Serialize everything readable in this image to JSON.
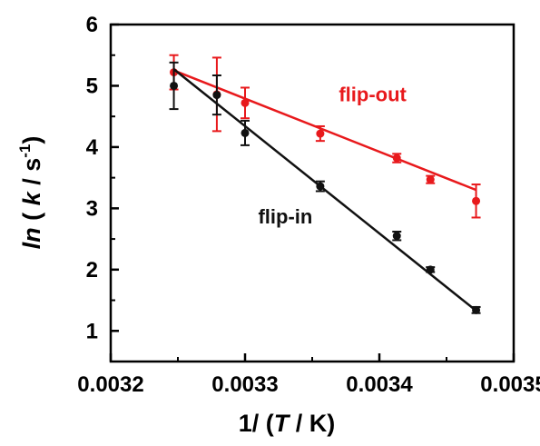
{
  "chart_data": {
    "type": "scatter",
    "title": "",
    "xlabel": {
      "prefix": "1/ (",
      "italic": "T",
      "suffix": " / K)"
    },
    "ylabel": {
      "prefix": "ln",
      "inner_open": " ( ",
      "italic_k": "k",
      "unit": " / s",
      "sup": "-1",
      "close": ")"
    },
    "xlim": [
      0.0032,
      0.0035
    ],
    "ylim": [
      0.5,
      6
    ],
    "x_ticks": [
      0.0032,
      0.0033,
      0.0034,
      0.0035
    ],
    "x_tick_labels": [
      "0.0032",
      "0.0033",
      "0.0034",
      "0.0035"
    ],
    "y_ticks": [
      1,
      2,
      3,
      4,
      5,
      6
    ],
    "y_tick_labels": [
      "1",
      "2",
      "3",
      "4",
      "5",
      "6"
    ],
    "grid": false,
    "series": [
      {
        "name": "flip-out",
        "color": "#e8191c",
        "x": [
          0.003247,
          0.003279,
          0.0033,
          0.003356,
          0.003413,
          0.003438,
          0.003472
        ],
        "y": [
          5.22,
          4.86,
          4.72,
          4.22,
          3.82,
          3.47,
          3.12
        ],
        "err": [
          0.28,
          0.6,
          0.25,
          0.12,
          0.07,
          0.06,
          0.27
        ],
        "fit": {
          "x": [
            0.003247,
            0.003472
          ],
          "y": [
            5.25,
            3.3
          ]
        },
        "label_pos": {
          "x": 0.003395,
          "y": 4.75
        }
      },
      {
        "name": "flip-in",
        "color": "#111111",
        "x": [
          0.003247,
          0.003279,
          0.0033,
          0.003356,
          0.003413,
          0.003438,
          0.003472
        ],
        "y": [
          5.0,
          4.85,
          4.23,
          3.36,
          2.55,
          2.0,
          1.34
        ],
        "err": [
          0.38,
          0.32,
          0.2,
          0.08,
          0.07,
          0.04,
          0.05
        ],
        "fit": {
          "x": [
            0.003247,
            0.003472
          ],
          "y": [
            5.27,
            1.33
          ]
        },
        "label_pos": {
          "x": 0.00333,
          "y": 2.75
        }
      }
    ]
  }
}
